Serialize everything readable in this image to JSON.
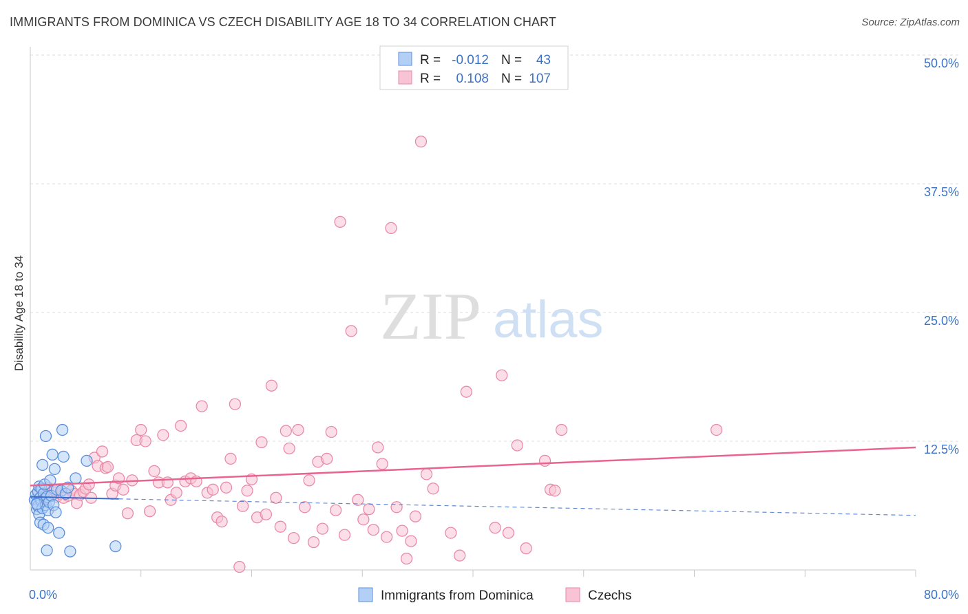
{
  "header": {
    "title": "IMMIGRANTS FROM DOMINICA VS CZECH DISABILITY AGE 18 TO 34 CORRELATION CHART",
    "source": "Source: ZipAtlas.com"
  },
  "watermark": {
    "zip": "ZIP",
    "atlas": "atlas"
  },
  "colors": {
    "blue_fill": "#b3cff5",
    "blue_stroke": "#5b8fdc",
    "blue_line": "#3a6cc9",
    "pink_fill": "#f8c3d4",
    "pink_stroke": "#e98aa9",
    "pink_line": "#e8648f",
    "axis_text": "#3c73c6",
    "grid": "#dddddd"
  },
  "legend": {
    "series": [
      {
        "r_label": "R =",
        "r_value": "-0.012",
        "n_label": "N =",
        "n_value": "43"
      },
      {
        "r_label": "R =",
        "r_value": "0.108",
        "n_label": "N =",
        "n_value": "107"
      }
    ]
  },
  "chart_data": {
    "type": "scatter",
    "title": "IMMIGRANTS FROM DOMINICA VS CZECH DISABILITY AGE 18 TO 34 CORRELATION CHART",
    "xlabel": "",
    "ylabel": "Disability Age 18 to 34",
    "xlim": [
      0,
      80
    ],
    "ylim": [
      0,
      50
    ],
    "x_tick_labels": [
      "0.0%",
      "80.0%"
    ],
    "y_ticks": [
      12.5,
      25.0,
      37.5,
      50.0
    ],
    "y_tick_labels": [
      "12.5%",
      "25.0%",
      "37.5%",
      "50.0%"
    ],
    "series": [
      {
        "name": "Immigrants from Dominica",
        "trend": {
          "x": [
            0,
            8
          ],
          "y": [
            7.1,
            6.9
          ],
          "dashed_to": [
            80,
            5.3
          ]
        },
        "points": [
          [
            0.4,
            6.8
          ],
          [
            0.5,
            7.3
          ],
          [
            0.6,
            6.5
          ],
          [
            0.6,
            5.9
          ],
          [
            0.7,
            7.6
          ],
          [
            0.7,
            6.2
          ],
          [
            0.8,
            8.1
          ],
          [
            0.8,
            5.4
          ],
          [
            0.9,
            7.0
          ],
          [
            0.9,
            4.6
          ],
          [
            1.0,
            6.7
          ],
          [
            1.0,
            7.9
          ],
          [
            1.1,
            6.0
          ],
          [
            1.1,
            10.2
          ],
          [
            1.2,
            7.4
          ],
          [
            1.2,
            4.4
          ],
          [
            1.3,
            6.9
          ],
          [
            1.3,
            8.3
          ],
          [
            1.4,
            6.3
          ],
          [
            1.4,
            13.0
          ],
          [
            1.5,
            7.1
          ],
          [
            1.5,
            1.9
          ],
          [
            1.6,
            5.8
          ],
          [
            1.6,
            4.1
          ],
          [
            1.7,
            6.6
          ],
          [
            1.8,
            8.7
          ],
          [
            1.9,
            7.2
          ],
          [
            2.0,
            11.2
          ],
          [
            2.1,
            6.3
          ],
          [
            2.2,
            9.8
          ],
          [
            2.3,
            5.6
          ],
          [
            2.4,
            7.8
          ],
          [
            2.6,
            3.6
          ],
          [
            2.8,
            7.7
          ],
          [
            2.9,
            13.6
          ],
          [
            3.0,
            11.0
          ],
          [
            3.2,
            7.4
          ],
          [
            3.4,
            8.0
          ],
          [
            3.6,
            1.8
          ],
          [
            4.1,
            8.9
          ],
          [
            5.1,
            10.6
          ],
          [
            7.7,
            2.3
          ],
          [
            0.6,
            6.4
          ]
        ]
      },
      {
        "name": "Czechs",
        "trend": {
          "x": [
            0,
            80
          ],
          "y": [
            8.2,
            11.9
          ]
        },
        "points": [
          [
            0.8,
            7.5
          ],
          [
            1.0,
            7.2
          ],
          [
            1.3,
            6.9
          ],
          [
            1.6,
            8.0
          ],
          [
            1.8,
            7.3
          ],
          [
            2.0,
            7.6
          ],
          [
            2.4,
            7.1
          ],
          [
            2.7,
            7.4
          ],
          [
            3.0,
            7.0
          ],
          [
            3.4,
            7.2
          ],
          [
            3.7,
            7.7
          ],
          [
            4.0,
            7.4
          ],
          [
            4.2,
            6.5
          ],
          [
            4.5,
            7.3
          ],
          [
            4.8,
            7.6
          ],
          [
            5.0,
            7.9
          ],
          [
            5.3,
            8.3
          ],
          [
            5.5,
            7.0
          ],
          [
            5.8,
            10.9
          ],
          [
            6.1,
            10.1
          ],
          [
            6.5,
            11.5
          ],
          [
            6.8,
            9.9
          ],
          [
            7.0,
            10.0
          ],
          [
            7.4,
            7.4
          ],
          [
            7.7,
            8.2
          ],
          [
            8.0,
            8.9
          ],
          [
            8.4,
            7.8
          ],
          [
            8.8,
            5.5
          ],
          [
            9.2,
            8.7
          ],
          [
            9.6,
            12.6
          ],
          [
            10.0,
            13.6
          ],
          [
            10.4,
            12.5
          ],
          [
            10.8,
            5.7
          ],
          [
            11.2,
            9.6
          ],
          [
            11.6,
            8.5
          ],
          [
            12.0,
            13.1
          ],
          [
            12.4,
            8.5
          ],
          [
            12.7,
            6.8
          ],
          [
            13.2,
            7.5
          ],
          [
            13.6,
            14.0
          ],
          [
            14.0,
            8.6
          ],
          [
            14.5,
            8.9
          ],
          [
            15.0,
            8.6
          ],
          [
            15.5,
            15.9
          ],
          [
            16.0,
            7.5
          ],
          [
            16.5,
            7.8
          ],
          [
            16.9,
            5.1
          ],
          [
            17.3,
            4.7
          ],
          [
            17.7,
            8.0
          ],
          [
            18.1,
            10.8
          ],
          [
            18.5,
            16.1
          ],
          [
            18.9,
            0.3
          ],
          [
            19.2,
            6.2
          ],
          [
            19.6,
            7.7
          ],
          [
            20.0,
            8.8
          ],
          [
            20.5,
            5.1
          ],
          [
            20.9,
            12.4
          ],
          [
            21.3,
            5.4
          ],
          [
            21.8,
            17.9
          ],
          [
            22.2,
            7.0
          ],
          [
            22.6,
            4.2
          ],
          [
            23.1,
            13.5
          ],
          [
            23.4,
            11.8
          ],
          [
            23.8,
            3.1
          ],
          [
            24.2,
            13.6
          ],
          [
            24.8,
            6.1
          ],
          [
            25.2,
            8.7
          ],
          [
            25.6,
            2.7
          ],
          [
            26.0,
            10.5
          ],
          [
            26.4,
            4.0
          ],
          [
            26.8,
            10.8
          ],
          [
            27.2,
            13.4
          ],
          [
            27.6,
            5.8
          ],
          [
            28.0,
            33.8
          ],
          [
            28.4,
            3.4
          ],
          [
            29.0,
            23.2
          ],
          [
            29.6,
            6.8
          ],
          [
            30.1,
            4.9
          ],
          [
            30.6,
            5.9
          ],
          [
            31.0,
            3.9
          ],
          [
            31.4,
            11.9
          ],
          [
            31.8,
            10.3
          ],
          [
            32.2,
            3.2
          ],
          [
            32.6,
            33.2
          ],
          [
            33.1,
            6.1
          ],
          [
            33.6,
            3.8
          ],
          [
            34.0,
            1.1
          ],
          [
            34.4,
            2.8
          ],
          [
            34.8,
            5.2
          ],
          [
            35.3,
            41.6
          ],
          [
            35.8,
            9.3
          ],
          [
            36.4,
            7.9
          ],
          [
            38.0,
            3.6
          ],
          [
            38.8,
            1.4
          ],
          [
            39.4,
            17.3
          ],
          [
            42.0,
            4.1
          ],
          [
            42.6,
            18.9
          ],
          [
            43.2,
            3.6
          ],
          [
            44.0,
            12.1
          ],
          [
            44.8,
            2.1
          ],
          [
            46.5,
            10.6
          ],
          [
            47.0,
            7.8
          ],
          [
            47.4,
            7.7
          ],
          [
            48.0,
            13.6
          ],
          [
            62.0,
            13.6
          ],
          [
            1.4,
            7.8
          ],
          [
            2.2,
            7.7
          ]
        ]
      }
    ]
  }
}
